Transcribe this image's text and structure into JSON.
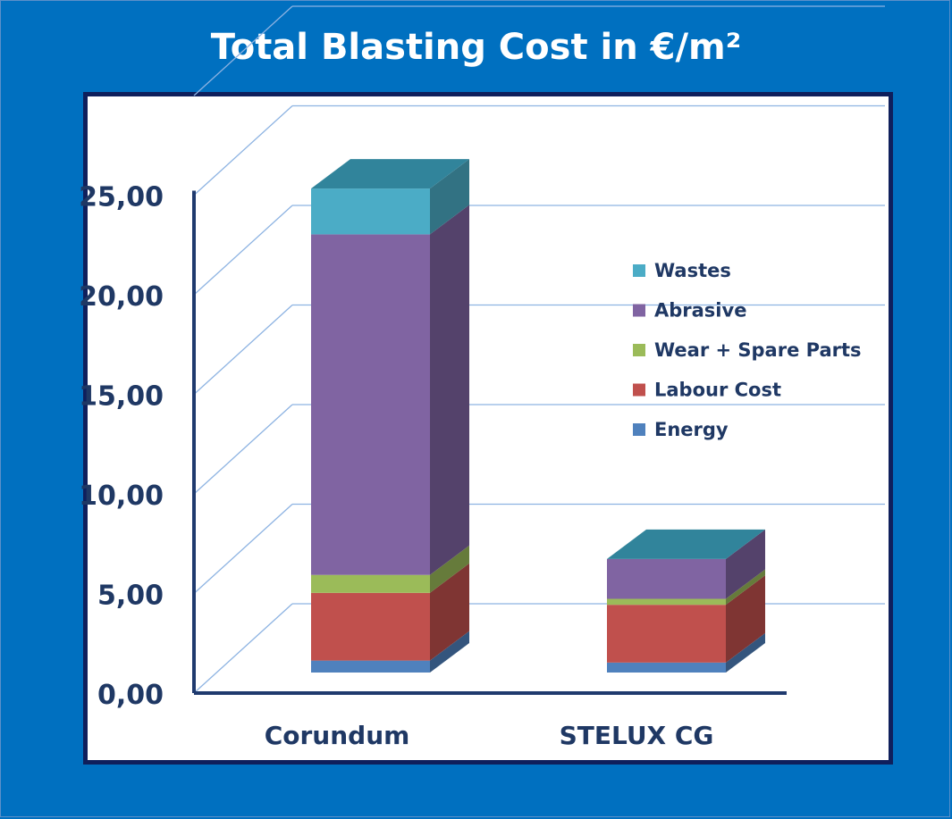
{
  "title": "Total Blasting Cost in €/m²",
  "chart_data": {
    "type": "bar",
    "stacked": true,
    "three_d": true,
    "categories": [
      "Corundum",
      "STELUX CG"
    ],
    "series": [
      {
        "name": "Energy",
        "color": "#4F81BD",
        "values": [
          0.6,
          0.5
        ]
      },
      {
        "name": "Labour Cost",
        "color": "#C0504D",
        "values": [
          3.4,
          2.9
        ]
      },
      {
        "name": "Wear + Spare Parts",
        "color": "#9BBB59",
        "values": [
          0.9,
          0.3
        ]
      },
      {
        "name": "Abrasive",
        "color": "#8064A2",
        "values": [
          17.1,
          2.0
        ]
      },
      {
        "name": "Wastes",
        "color": "#4BACC6",
        "values": [
          2.3,
          0.0
        ]
      }
    ],
    "y_ticks": [
      "0,00",
      "5,00",
      "10,00",
      "15,00",
      "20,00",
      "25,00"
    ],
    "ylim": [
      0,
      25
    ],
    "grid": true,
    "legend": "right",
    "legend_order": [
      "Wastes",
      "Abrasive",
      "Wear + Spare Parts",
      "Labour Cost",
      "Energy"
    ]
  }
}
